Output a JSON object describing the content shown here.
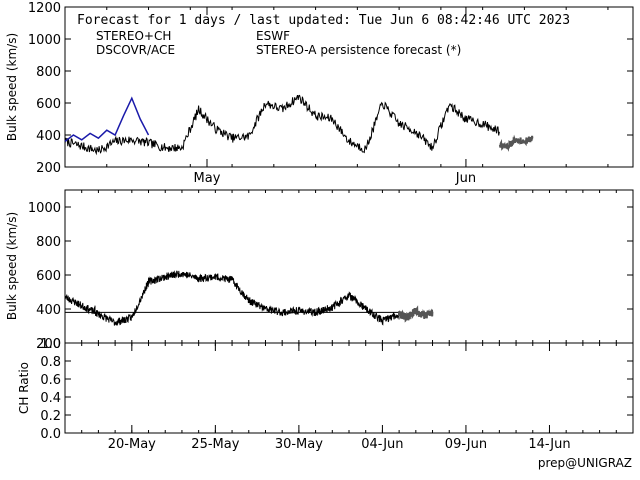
{
  "header": {
    "title": "Forecast for 1 days / last updated: Tue Jun  6 08:42:46 UTC 2023",
    "footer": "prep@UNIGRAZ"
  },
  "legend": {
    "items": [
      {
        "label": "STEREO+CH",
        "color": "#cc0000"
      },
      {
        "label": "ESWF",
        "color": "#1a1aaa"
      },
      {
        "label": "DSCOVR/ACE",
        "color": "#000000"
      },
      {
        "label": "STEREO-A persistence forecast (*)",
        "color": "#555555"
      }
    ]
  },
  "colors": {
    "dscovr": "#000000",
    "eswf": "#1a1aaa",
    "stereo_persistence": "#555555",
    "axes": "#000000"
  },
  "chart_data": [
    {
      "type": "line",
      "panel": "top",
      "ylabel": "Bulk speed (km/s)",
      "xlabel": "",
      "x_units": "date (2023)",
      "xlim": [
        "2023-04-14",
        "2023-06-21"
      ],
      "ylim": [
        200,
        1200
      ],
      "yticks": [
        200,
        400,
        600,
        800,
        1000,
        1200
      ],
      "xticks": [
        {
          "date": "2023-05-01",
          "label": "May"
        },
        {
          "date": "2023-06-01",
          "label": "Jun"
        }
      ],
      "grid": false,
      "series": [
        {
          "name": "DSCOVR/ACE",
          "x": [
            "2023-04-14",
            "2023-04-16",
            "2023-04-18",
            "2023-04-20",
            "2023-04-22",
            "2023-04-24",
            "2023-04-26",
            "2023-04-28",
            "2023-04-30",
            "2023-05-02",
            "2023-05-04",
            "2023-05-06",
            "2023-05-08",
            "2023-05-10",
            "2023-05-12",
            "2023-05-14",
            "2023-05-16",
            "2023-05-18",
            "2023-05-20",
            "2023-05-22",
            "2023-05-24",
            "2023-05-26",
            "2023-05-28",
            "2023-05-30",
            "2023-06-01",
            "2023-06-03",
            "2023-06-05"
          ],
          "values": [
            360,
            330,
            300,
            360,
            370,
            350,
            320,
            320,
            560,
            440,
            380,
            390,
            600,
            560,
            640,
            520,
            500,
            360,
            310,
            600,
            470,
            420,
            320,
            590,
            500,
            470,
            420
          ]
        },
        {
          "name": "ESWF",
          "x": [
            "2023-04-14",
            "2023-04-15",
            "2023-04-16",
            "2023-04-17",
            "2023-04-18",
            "2023-04-19",
            "2023-04-20",
            "2023-04-21",
            "2023-04-22",
            "2023-04-23",
            "2023-04-24"
          ],
          "values": [
            360,
            400,
            370,
            410,
            380,
            430,
            400,
            520,
            630,
            500,
            400
          ]
        },
        {
          "name": "STEREO-A persistence forecast (*)",
          "x": [
            "2023-06-05",
            "2023-06-06",
            "2023-06-07",
            "2023-06-08",
            "2023-06-09"
          ],
          "values": [
            340,
            330,
            370,
            360,
            380
          ]
        }
      ]
    },
    {
      "type": "line",
      "panel": "middle",
      "ylabel": "Bulk speed (km/s)",
      "xlabel": "",
      "x_units": "date (2023)",
      "xlim": [
        "2023-05-16",
        "2023-06-19"
      ],
      "ylim": [
        200,
        1100
      ],
      "yticks": [
        200,
        400,
        600,
        800,
        1000
      ],
      "grid": false,
      "reference_line": 380,
      "series": [
        {
          "name": "DSCOVR/ACE",
          "x": [
            "2023-05-16",
            "2023-05-17",
            "2023-05-18",
            "2023-05-19",
            "2023-05-20",
            "2023-05-21",
            "2023-05-22",
            "2023-05-23",
            "2023-05-24",
            "2023-05-25",
            "2023-05-26",
            "2023-05-27",
            "2023-05-28",
            "2023-05-29",
            "2023-05-30",
            "2023-05-31",
            "2023-06-01",
            "2023-06-02",
            "2023-06-03",
            "2023-06-04",
            "2023-06-05"
          ],
          "values": [
            470,
            420,
            370,
            320,
            350,
            560,
            590,
            610,
            580,
            590,
            570,
            450,
            400,
            380,
            390,
            380,
            410,
            480,
            400,
            330,
            370
          ]
        },
        {
          "name": "STEREO-A persistence forecast (*)",
          "x": [
            "2023-06-05",
            "2023-06-05T12:00",
            "2023-06-06",
            "2023-06-06T12:00",
            "2023-06-07"
          ],
          "values": [
            370,
            350,
            390,
            360,
            380
          ]
        }
      ]
    },
    {
      "type": "line",
      "panel": "bottom",
      "ylabel": "CH Ratio",
      "xlabel": "",
      "x_units": "date (2023)",
      "xlim": [
        "2023-05-16",
        "2023-06-19"
      ],
      "ylim": [
        0.0,
        1.0
      ],
      "yticks": [
        0.0,
        0.2,
        0.4,
        0.6,
        0.8,
        1.0
      ],
      "xticks": [
        {
          "date": "2023-05-20",
          "label": "20-May"
        },
        {
          "date": "2023-05-25",
          "label": "25-May"
        },
        {
          "date": "2023-05-30",
          "label": "30-May"
        },
        {
          "date": "2023-06-04",
          "label": "04-Jun"
        },
        {
          "date": "2023-06-09",
          "label": "09-Jun"
        },
        {
          "date": "2023-06-14",
          "label": "14-Jun"
        }
      ],
      "grid": false,
      "series": []
    }
  ]
}
